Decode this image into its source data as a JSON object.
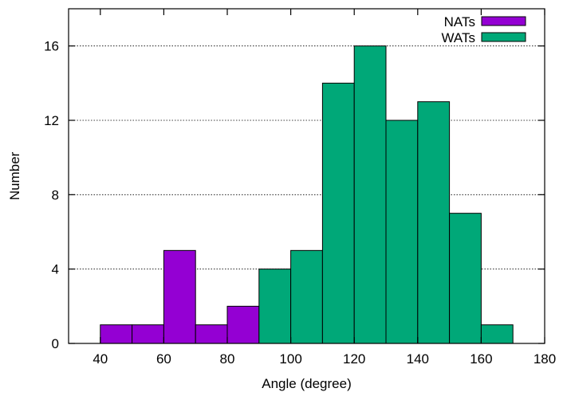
{
  "chart_data": {
    "type": "bar",
    "xlabel": "Angle (degree)",
    "ylabel": "Number",
    "xlim": [
      30,
      180
    ],
    "ylim": [
      0,
      18
    ],
    "x_ticks": [
      40,
      60,
      80,
      100,
      120,
      140,
      160,
      180
    ],
    "y_ticks": [
      0,
      4,
      8,
      12,
      16
    ],
    "grid": "horizontal dotted at y ticks",
    "legend_position": "top-right",
    "bin_width": 10,
    "series": [
      {
        "name": "NATs",
        "color": "#9400d3",
        "bins": [
          {
            "start": 40,
            "value": 1
          },
          {
            "start": 50,
            "value": 1
          },
          {
            "start": 60,
            "value": 5
          },
          {
            "start": 70,
            "value": 1
          },
          {
            "start": 80,
            "value": 2
          }
        ]
      },
      {
        "name": "WATs",
        "color": "#00a878",
        "bins": [
          {
            "start": 90,
            "value": 4
          },
          {
            "start": 100,
            "value": 5
          },
          {
            "start": 110,
            "value": 14
          },
          {
            "start": 120,
            "value": 16
          },
          {
            "start": 130,
            "value": 12
          },
          {
            "start": 140,
            "value": 13
          },
          {
            "start": 150,
            "value": 7
          },
          {
            "start": 160,
            "value": 1
          }
        ]
      }
    ]
  }
}
